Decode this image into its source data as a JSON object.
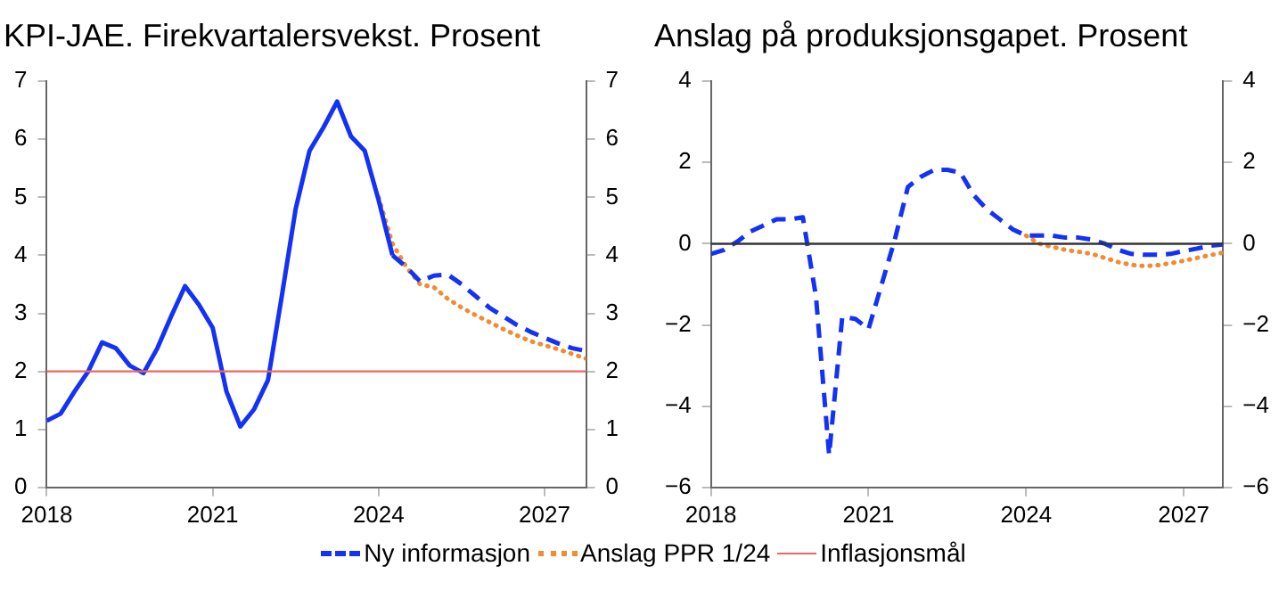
{
  "chart_data": [
    {
      "type": "line",
      "title": "KPI-JAE. Firekvartalersvekst. Prosent",
      "xlim": [
        2018,
        2027.75
      ],
      "xticks": [
        2018,
        2021,
        2024,
        2027
      ],
      "ylim": [
        0,
        7
      ],
      "yticks": [
        0,
        1,
        2,
        3,
        4,
        5,
        6,
        7
      ],
      "y2lim": [
        0,
        7
      ],
      "y2ticks": [
        0,
        1,
        2,
        3,
        4,
        5,
        6,
        7
      ],
      "grid": false,
      "legend": "bottom",
      "marker": "none",
      "series": [
        {
          "color": "#1432f5",
          "line_style": "solid",
          "x": [
            2018,
            2018.25,
            2018.5,
            2018.75,
            2019,
            2019.25,
            2019.5,
            2019.75,
            2020,
            2020.25,
            2020.5,
            2020.75,
            2021,
            2021.25,
            2021.5,
            2021.75,
            2022,
            2022.25,
            2022.5,
            2022.75,
            2023,
            2023.25,
            2023.5,
            2023.75,
            2024,
            2024.25
          ],
          "values": [
            1.15,
            1.27,
            1.65,
            2.0,
            2.5,
            2.4,
            2.1,
            1.97,
            2.4,
            2.95,
            3.47,
            3.15,
            2.75,
            1.65,
            1.05,
            1.35,
            1.85,
            3.3,
            4.8,
            5.8,
            6.2,
            6.65,
            6.05,
            5.8,
            4.95,
            4.0
          ]
        },
        {
          "name": "Ny informasjon",
          "color": "#1432f5",
          "line_style": "dashed",
          "x": [
            2024.25,
            2024.5,
            2024.75,
            2025,
            2025.25,
            2025.5,
            2025.75,
            2026,
            2026.25,
            2026.5,
            2026.75,
            2027,
            2027.25,
            2027.5,
            2027.75
          ],
          "values": [
            4.0,
            3.8,
            3.55,
            3.65,
            3.67,
            3.5,
            3.3,
            3.1,
            2.95,
            2.8,
            2.68,
            2.58,
            2.48,
            2.4,
            2.35
          ]
        },
        {
          "name": "Anslag PPR 1/24",
          "color": "#f08c32",
          "line_style": "dotted",
          "x": [
            2024,
            2024.25,
            2024.5,
            2024.75,
            2025,
            2025.25,
            2025.5,
            2025.75,
            2026,
            2026.25,
            2026.5,
            2026.75,
            2027,
            2027.25,
            2027.5,
            2027.75
          ],
          "values": [
            5.0,
            4.2,
            3.8,
            3.5,
            3.45,
            3.25,
            3.1,
            2.97,
            2.85,
            2.73,
            2.62,
            2.52,
            2.45,
            2.38,
            2.3,
            2.22
          ]
        }
      ],
      "ref_lines": [
        {
          "axis": "y",
          "value": 2,
          "label": "Inflasjonsmål",
          "color": "#f06464",
          "line_style": "solid"
        }
      ]
    },
    {
      "type": "line",
      "title": "Anslag på produksjonsgapet. Prosent",
      "xlim": [
        2018,
        2027.75
      ],
      "xticks": [
        2018,
        2021,
        2024,
        2027
      ],
      "ylim": [
        -6,
        4
      ],
      "yticks": [
        -6,
        -4,
        -2,
        0,
        2,
        4
      ],
      "y2lim": [
        -6,
        4
      ],
      "y2ticks": [
        -6,
        -4,
        -2,
        0,
        2,
        4
      ],
      "grid": false,
      "legend": "bottom",
      "marker": "none",
      "series": [
        {
          "name": "Ny informasjon",
          "color": "#1432f5",
          "line_style": "dashed",
          "x": [
            2018,
            2018.25,
            2018.5,
            2018.75,
            2019,
            2019.25,
            2019.5,
            2019.75,
            2020,
            2020.25,
            2020.5,
            2020.75,
            2021,
            2021.25,
            2021.5,
            2021.75,
            2022,
            2022.25,
            2022.5,
            2022.75,
            2023,
            2023.25,
            2023.5,
            2023.75,
            2024,
            2024.25,
            2024.5,
            2024.75,
            2025,
            2025.25,
            2025.5,
            2025.75,
            2026,
            2026.25,
            2026.5,
            2026.75,
            2027,
            2027.25,
            2027.5,
            2027.75
          ],
          "values": [
            -0.25,
            -0.15,
            0.05,
            0.3,
            0.45,
            0.6,
            0.6,
            0.65,
            -1.3,
            -5.2,
            -1.8,
            -1.85,
            -2.1,
            -1.0,
            0.1,
            1.4,
            1.65,
            1.82,
            1.82,
            1.75,
            1.2,
            0.85,
            0.6,
            0.35,
            0.2,
            0.2,
            0.2,
            0.15,
            0.15,
            0.1,
            0.0,
            -0.15,
            -0.25,
            -0.27,
            -0.27,
            -0.25,
            -0.18,
            -0.12,
            -0.05,
            -0.02
          ]
        },
        {
          "name": "Anslag PPR 1/24",
          "color": "#f08c32",
          "line_style": "dotted",
          "x": [
            2024,
            2024.25,
            2024.5,
            2024.75,
            2025,
            2025.25,
            2025.5,
            2025.75,
            2026,
            2026.25,
            2026.5,
            2026.75,
            2027,
            2027.25,
            2027.5,
            2027.75
          ],
          "values": [
            0.2,
            0.0,
            -0.08,
            -0.15,
            -0.2,
            -0.25,
            -0.35,
            -0.45,
            -0.52,
            -0.55,
            -0.53,
            -0.48,
            -0.42,
            -0.35,
            -0.28,
            -0.22
          ]
        }
      ],
      "ref_lines": [
        {
          "axis": "y",
          "value": 0,
          "color": "#333333",
          "line_style": "solid"
        }
      ]
    }
  ]
}
